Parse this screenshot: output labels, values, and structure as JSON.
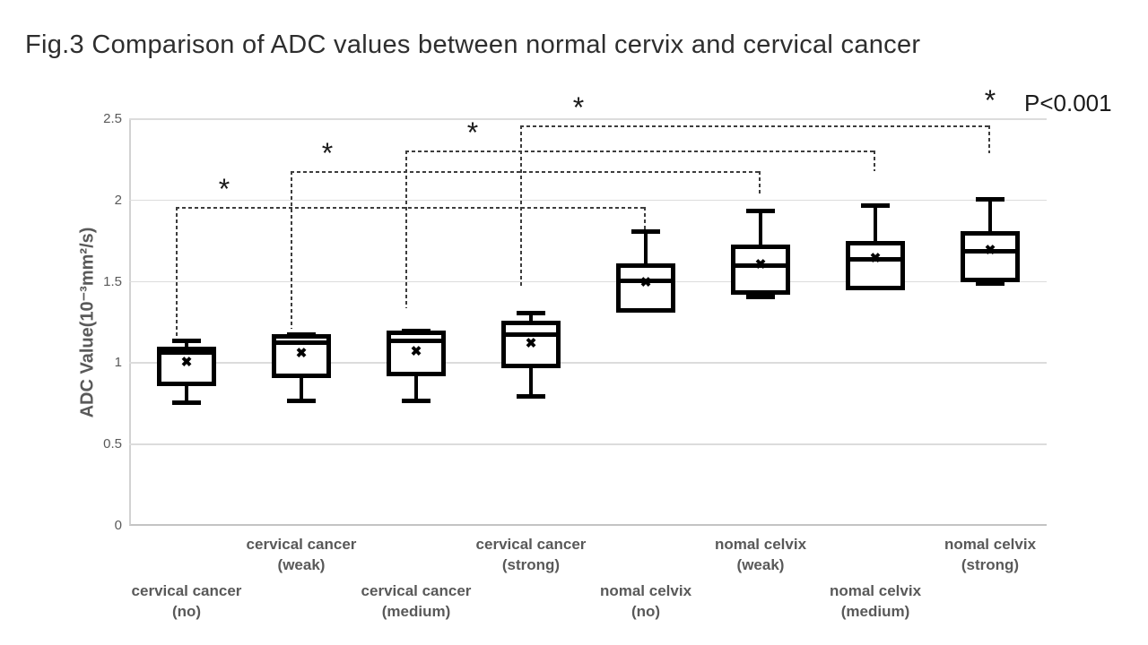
{
  "title": "Fig.3 Comparison of ADC values between normal cervix and cervical cancer",
  "significance_note": {
    "star": "*",
    "label": "P<0.001"
  },
  "colors": {
    "box": "#000000",
    "grid": "#dcdcdc",
    "axis_text": "#595959",
    "title_text": "#2e2e2e",
    "bracket": "#3d3d3d",
    "background": "#ffffff"
  },
  "chart_data": {
    "type": "boxplot",
    "title": "Fig.3 Comparison of ADC values between normal cervix and cervical cancer",
    "ylabel": "ADC Value(10⁻³mm²/s)",
    "ylim": [
      0,
      2.5
    ],
    "yticks": [
      0,
      0.5,
      1,
      1.5,
      2,
      2.5
    ],
    "grid": true,
    "mean_marker": "✖",
    "annotation": "* P<0.001",
    "boxes": [
      {
        "label_line1": "cervical cancer",
        "label_line2": "(no)",
        "label_row": "lower",
        "whisker_low": 0.76,
        "q1": 0.87,
        "median": 1.07,
        "q3": 1.09,
        "whisker_high": 1.14,
        "mean": 1.0
      },
      {
        "label_line1": "cervical cancer",
        "label_line2": "(weak)",
        "label_row": "upper",
        "whisker_low": 0.77,
        "q1": 0.92,
        "median": 1.13,
        "q3": 1.17,
        "whisker_high": 1.18,
        "mean": 1.06
      },
      {
        "label_line1": "cervical cancer",
        "label_line2": "(medium)",
        "label_row": "lower",
        "whisker_low": 0.77,
        "q1": 0.93,
        "median": 1.14,
        "q3": 1.19,
        "whisker_high": 1.2,
        "mean": 1.07
      },
      {
        "label_line1": "cervical cancer",
        "label_line2": "(strong)",
        "label_row": "upper",
        "whisker_low": 0.8,
        "q1": 0.98,
        "median": 1.18,
        "q3": 1.25,
        "whisker_high": 1.31,
        "mean": 1.12
      },
      {
        "label_line1": "nomal celvix",
        "label_line2": "(no)",
        "label_row": "lower",
        "whisker_low": null,
        "q1": 1.32,
        "median": 1.51,
        "q3": 1.6,
        "whisker_high": 1.81,
        "mean": 1.49
      },
      {
        "label_line1": "nomal celvix",
        "label_line2": "(weak)",
        "label_row": "upper",
        "whisker_low": 1.41,
        "q1": 1.43,
        "median": 1.6,
        "q3": 1.72,
        "whisker_high": 1.94,
        "mean": 1.6
      },
      {
        "label_line1": "nomal celvix",
        "label_line2": "(medium)",
        "label_row": "lower",
        "whisker_low": null,
        "q1": 1.46,
        "median": 1.64,
        "q3": 1.74,
        "whisker_high": 1.97,
        "mean": 1.64
      },
      {
        "label_line1": "nomal celvix",
        "label_line2": "(strong)",
        "label_row": "upper",
        "whisker_low": 1.49,
        "q1": 1.51,
        "median": 1.69,
        "q3": 1.8,
        "whisker_high": 2.01,
        "mean": 1.69
      }
    ],
    "brackets": [
      {
        "from": 0,
        "to": 4,
        "y": 1.96,
        "drop_to": 1.17,
        "stub_to": 1.82,
        "star": "*",
        "star_dx": 54
      },
      {
        "from": 1,
        "to": 5,
        "y": 2.18,
        "drop_to": 1.21,
        "stub_to": 2.04,
        "star": "*",
        "star_dx": 41
      },
      {
        "from": 2,
        "to": 6,
        "y": 2.31,
        "drop_to": 1.34,
        "stub_to": 2.18,
        "star": "*",
        "star_dx": 75
      },
      {
        "from": 3,
        "to": 7,
        "y": 2.46,
        "drop_to": 1.47,
        "stub_to": 2.29,
        "star": "*",
        "star_dx": 65
      }
    ]
  }
}
